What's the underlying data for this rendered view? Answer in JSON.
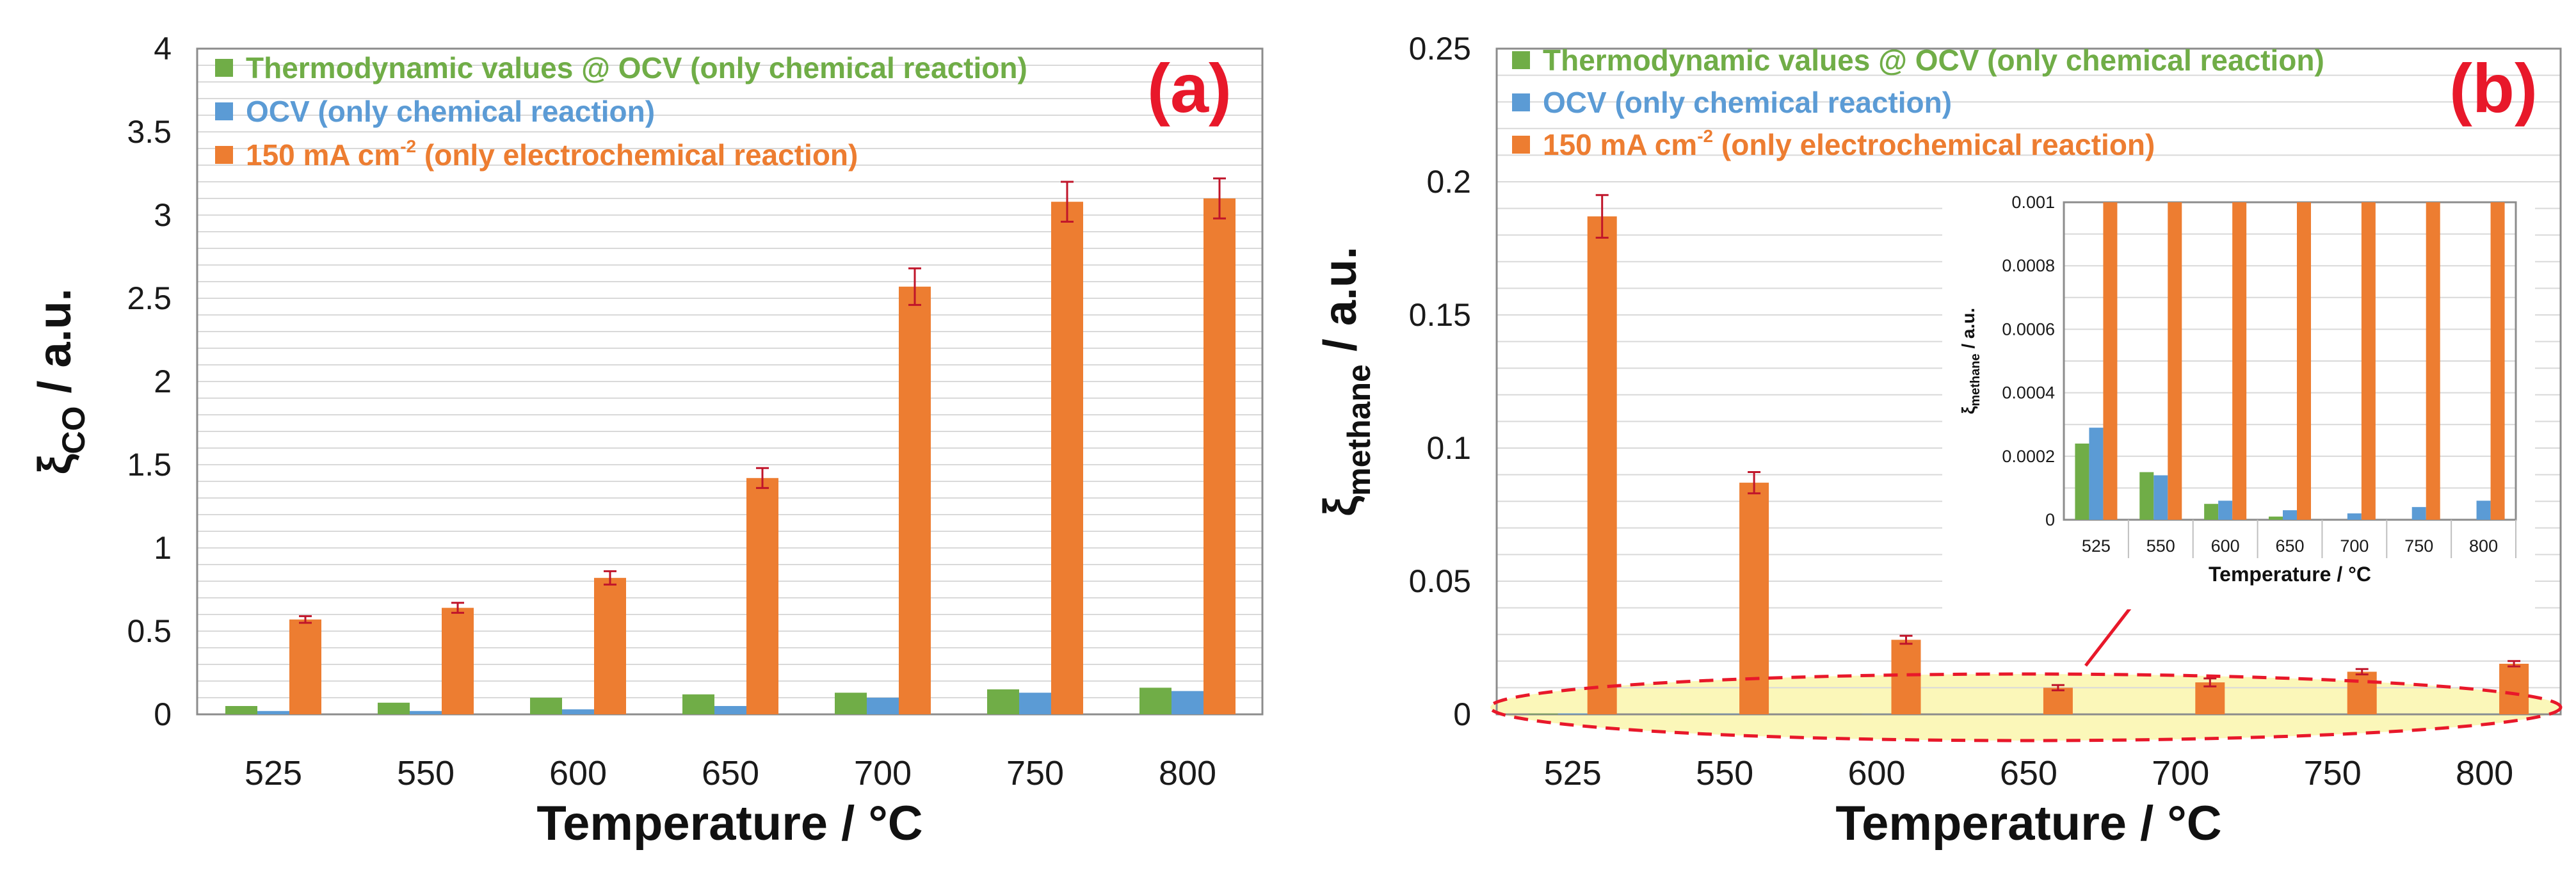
{
  "colors": {
    "thermo": "#70ad47",
    "ocv": "#5b9bd5",
    "current": "#ed7d31",
    "error": "#c0152a",
    "highlight_fill": "#fbf7b9",
    "highlight_stroke": "#e8182a",
    "panel_tag": "#e8182a"
  },
  "legend": [
    {
      "key": "thermo",
      "label": "Thermodynamic values @ OCV (only chemical reaction)"
    },
    {
      "key": "ocv",
      "label": "OCV (only chemical reaction)"
    },
    {
      "key": "current",
      "label_main": "150 mA cm",
      "label_sup": "-2",
      "label_rest": " (only electrochemical reaction)"
    }
  ],
  "chart_data": [
    {
      "type": "bar",
      "panel_tag": "(a)",
      "categories": [
        "525",
        "550",
        "600",
        "650",
        "700",
        "750",
        "800"
      ],
      "xlabel": "Temperature / °C",
      "ylabel_symbol": "ξ",
      "ylabel_sub": "CO",
      "ylabel_unit": " / a.u.",
      "ylim": [
        0,
        4
      ],
      "yticks": [
        "0",
        "0.5",
        "1",
        "1.5",
        "2",
        "2.5",
        "3",
        "3.5",
        "4"
      ],
      "ytick_values": [
        0,
        0.5,
        1,
        1.5,
        2,
        2.5,
        3,
        3.5,
        4
      ],
      "grid": true,
      "series": [
        {
          "key": "thermo",
          "name": "Thermodynamic values @ OCV (only chemical reaction)",
          "values": [
            0.05,
            0.07,
            0.1,
            0.12,
            0.13,
            0.15,
            0.16
          ]
        },
        {
          "key": "ocv",
          "name": "OCV (only chemical reaction)",
          "values": [
            0.02,
            0.02,
            0.03,
            0.05,
            0.1,
            0.13,
            0.14
          ]
        },
        {
          "key": "current",
          "name": "150 mA cm-2 (only electrochemical reaction)",
          "values": [
            0.57,
            0.64,
            0.82,
            1.42,
            2.57,
            3.08,
            3.1
          ],
          "errors": [
            0.02,
            0.03,
            0.04,
            0.06,
            0.11,
            0.12,
            0.12
          ]
        }
      ]
    },
    {
      "type": "bar",
      "panel_tag": "(b)",
      "categories": [
        "525",
        "550",
        "600",
        "650",
        "700",
        "750",
        "800"
      ],
      "xlabel": "Temperature / °C",
      "ylabel_symbol": "ξ",
      "ylabel_sub": "methane",
      "ylabel_unit": " / a.u.",
      "ylim": [
        0,
        0.25
      ],
      "yticks": [
        "0",
        "0.05",
        "0.1",
        "0.15",
        "0.2",
        "0.25"
      ],
      "ytick_values": [
        0,
        0.05,
        0.1,
        0.15,
        0.2,
        0.25
      ],
      "grid": true,
      "series": [
        {
          "key": "thermo",
          "name": "Thermodynamic values @ OCV (only chemical reaction)",
          "values": [
            0.00024,
            0.00015,
            5e-05,
            1e-05,
            0,
            0,
            0
          ]
        },
        {
          "key": "ocv",
          "name": "OCV (only chemical reaction)",
          "values": [
            0.00029,
            0.00014,
            6e-05,
            3e-05,
            2e-05,
            4e-05,
            6e-05
          ]
        },
        {
          "key": "current",
          "name": "150 mA cm-2 (only electrochemical reaction)",
          "values": [
            0.187,
            0.087,
            0.028,
            0.01,
            0.012,
            0.016,
            0.019
          ],
          "errors": [
            0.008,
            0.004,
            0.0015,
            0.001,
            0.0015,
            0.001,
            0.001
          ]
        }
      ],
      "inset": {
        "ylim": [
          0,
          0.001
        ],
        "yticks": [
          "0",
          "0.0002",
          "0.0004",
          "0.0006",
          "0.0008",
          "0.001"
        ],
        "ytick_values": [
          0,
          0.0002,
          0.0004,
          0.0006,
          0.0008,
          0.001
        ],
        "xlabel": "Temperature / °C",
        "ylabel_symbol": "ξ",
        "ylabel_sub": "methane",
        "ylabel_unit": " / a.u."
      }
    }
  ]
}
